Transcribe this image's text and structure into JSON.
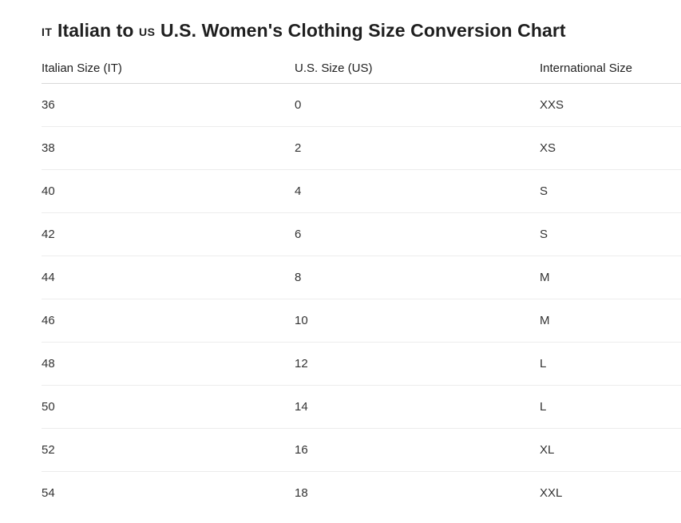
{
  "title": {
    "flag_from": "IT",
    "part1": "Italian to",
    "flag_to": "US",
    "part2": "U.S. Women's Clothing Size Conversion Chart"
  },
  "table": {
    "headers": [
      "Italian Size (IT)",
      "U.S. Size (US)",
      "International Size"
    ],
    "rows": [
      [
        "36",
        "0",
        "XXS"
      ],
      [
        "38",
        "2",
        "XS"
      ],
      [
        "40",
        "4",
        "S"
      ],
      [
        "42",
        "6",
        "S"
      ],
      [
        "44",
        "8",
        "M"
      ],
      [
        "46",
        "10",
        "M"
      ],
      [
        "48",
        "12",
        "L"
      ],
      [
        "50",
        "14",
        "L"
      ],
      [
        "52",
        "16",
        "XL"
      ],
      [
        "54",
        "18",
        "XXL"
      ]
    ]
  }
}
